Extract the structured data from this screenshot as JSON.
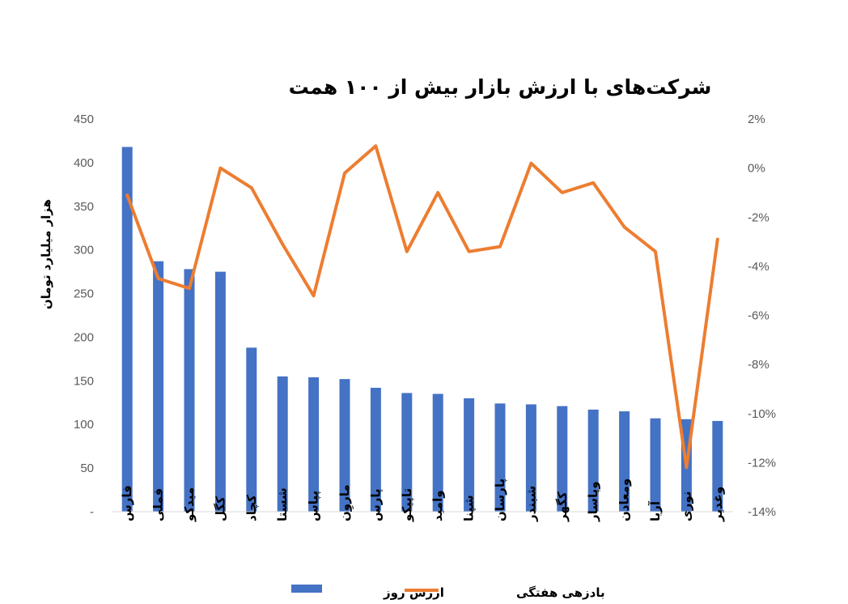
{
  "chart_data": {
    "type": "bar",
    "title": "شرکت‌های با ارزش بازار بیش از ۱۰۰ همت",
    "ylabel": "هزار میلیارد تومان",
    "ylim": [
      0,
      450
    ],
    "y_ticks": [
      "-",
      "50",
      "100",
      "150",
      "200",
      "250",
      "300",
      "350",
      "400",
      "450"
    ],
    "y2lim": [
      -14,
      2
    ],
    "y2_ticks": [
      "-14%",
      "-12%",
      "-10%",
      "-8%",
      "-6%",
      "-4%",
      "-2%",
      "0%",
      "2%"
    ],
    "categories": [
      "فارس",
      "فملی",
      "میدکو",
      "کگل",
      "کچاد",
      "شستا",
      "پپاس",
      "ماروِن",
      "پارس",
      "تاپیکو",
      "وامید",
      "شپنا",
      "پارسان",
      "شبندر",
      "کگهر",
      "وپاسار",
      "ومعادن",
      "آریا",
      "نوری",
      "وغدیر"
    ],
    "series": [
      {
        "name": "ارزش روز",
        "type": "bar",
        "axis": "left",
        "color": "#4472C4",
        "values": [
          418,
          287,
          278,
          275,
          188,
          155,
          154,
          152,
          142,
          136,
          135,
          130,
          124,
          123,
          121,
          117,
          115,
          107,
          106,
          104
        ]
      },
      {
        "name": "بادزهی هفتگی",
        "type": "line",
        "axis": "right",
        "color": "#ED7D31",
        "values": [
          -1.1,
          -4.5,
          -4.9,
          0.0,
          -0.8,
          -3.1,
          -5.2,
          -0.2,
          0.9,
          -3.4,
          -1.0,
          -3.4,
          -3.2,
          0.2,
          -1.0,
          -0.6,
          -2.4,
          -3.4,
          -12.2,
          -2.9
        ]
      }
    ],
    "legend": "bottom",
    "grid": false
  }
}
